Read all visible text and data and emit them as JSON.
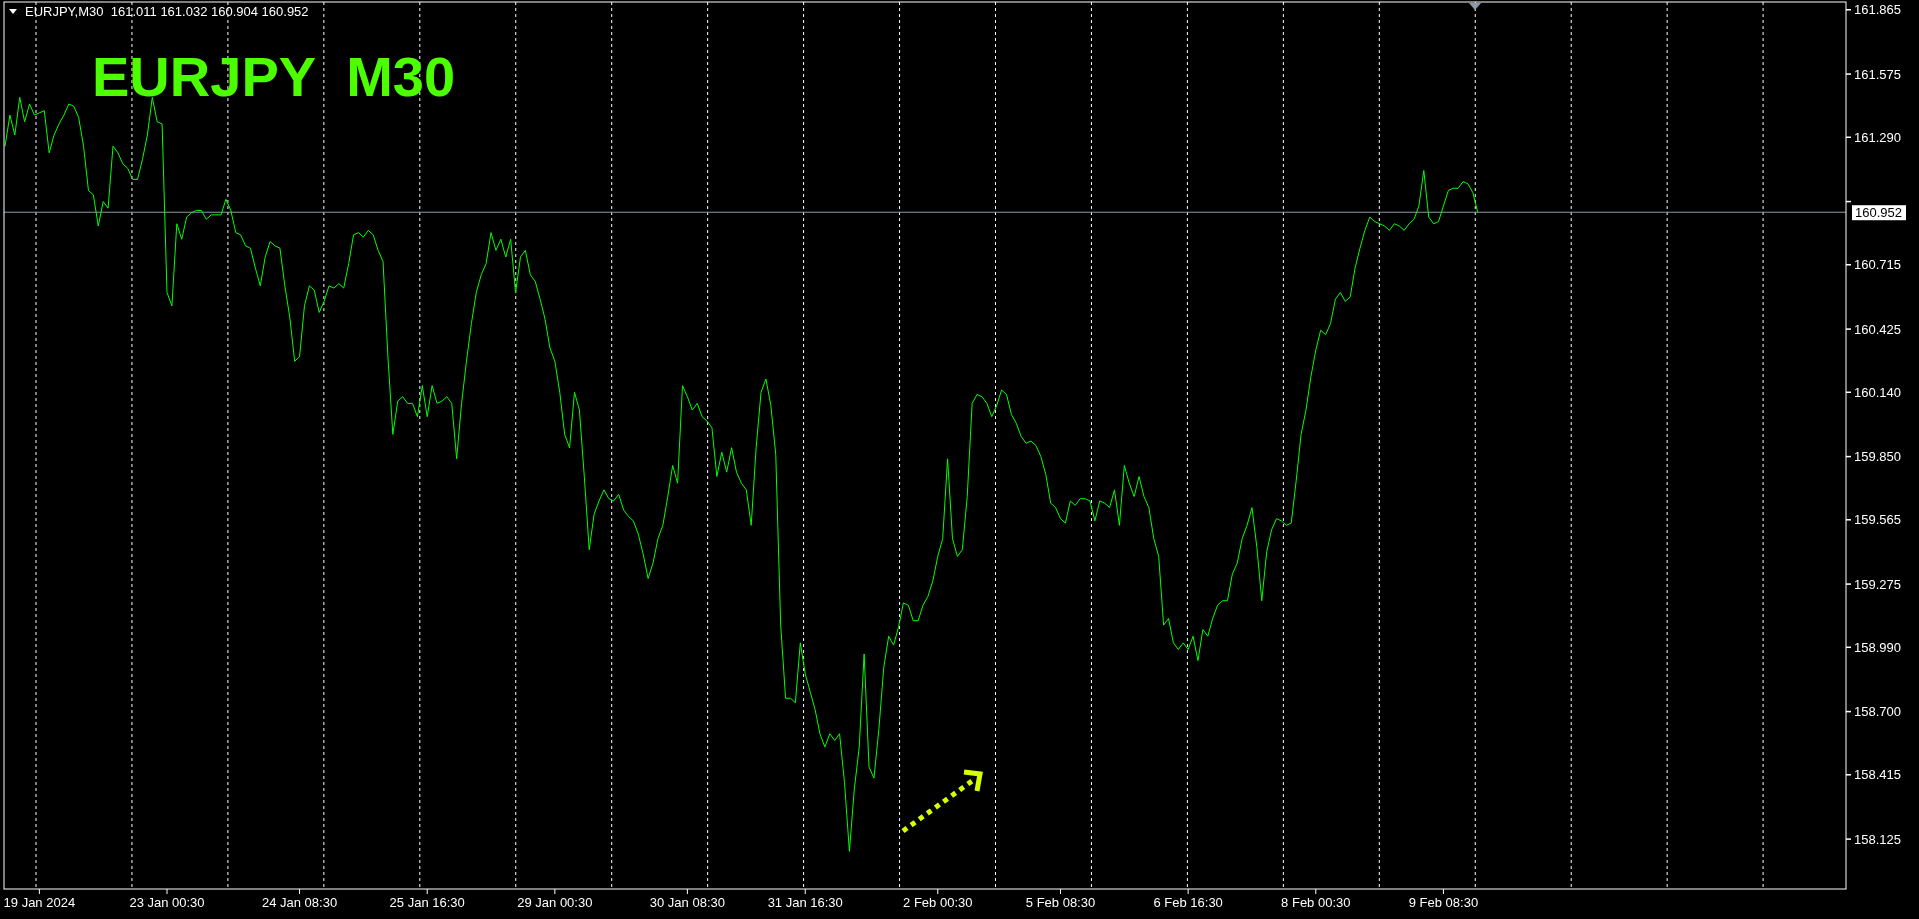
{
  "chart_data": {
    "type": "line",
    "title": "EURJPY  M30",
    "subtitle": "EURJPY,M30  161.011 161.032 160.904 160.952",
    "categories": [
      null,
      null,
      null,
      null,
      null,
      null,
      null,
      "19 Jan 2024",
      null,
      null,
      null,
      null,
      null,
      null,
      null,
      null,
      null,
      null,
      null,
      null,
      null,
      null,
      null,
      null,
      null,
      null,
      null,
      null,
      null,
      null,
      null,
      null,
      null,
      "23 Jan 00:30",
      null,
      null,
      null,
      null,
      null,
      null,
      null,
      null,
      null,
      null,
      null,
      null,
      null,
      null,
      null,
      null,
      null,
      null,
      null,
      null,
      null,
      null,
      null,
      null,
      null,
      null,
      "24 Jan 08:30",
      null,
      null,
      null,
      null,
      null,
      null,
      null,
      null,
      null,
      null,
      null,
      null,
      null,
      null,
      null,
      null,
      null,
      null,
      null,
      null,
      null,
      null,
      null,
      null,
      null,
      "25 Jan 16:30",
      null,
      null,
      null,
      null,
      null,
      null,
      null,
      null,
      null,
      null,
      null,
      null,
      null,
      null,
      null,
      null,
      null,
      null,
      null,
      null,
      null,
      null,
      null,
      null,
      null,
      "29 Jan 00:30",
      null,
      null,
      null,
      null,
      null,
      null,
      null,
      null,
      null,
      null,
      null,
      null,
      null,
      null,
      null,
      null,
      null,
      null,
      null,
      null,
      null,
      null,
      null,
      null,
      null,
      null,
      "30 Jan 08:30",
      null,
      null,
      null,
      null,
      null,
      null,
      null,
      null,
      null,
      null,
      null,
      null,
      null,
      null,
      null,
      null,
      null,
      null,
      null,
      null,
      null,
      null,
      null,
      "31 Jan 16:30",
      null,
      null,
      null,
      null,
      null,
      null,
      null,
      null,
      null,
      null,
      null,
      null,
      null,
      null,
      null,
      null,
      null,
      null,
      null,
      null,
      null,
      null,
      null,
      null,
      null,
      null,
      "2 Feb 00:30",
      null,
      null,
      null,
      null,
      null,
      null,
      null,
      null,
      null,
      null,
      null,
      null,
      null,
      null,
      null,
      null,
      null,
      null,
      null,
      null,
      null,
      null,
      null,
      null,
      "5 Feb 08:30",
      null,
      null,
      null,
      null,
      null,
      null,
      null,
      null,
      null,
      null,
      null,
      null,
      null,
      null,
      null,
      null,
      null,
      null,
      null,
      null,
      null,
      null,
      null,
      null,
      null,
      "6 Feb 16:30",
      null,
      null,
      null,
      null,
      null,
      null,
      null,
      null,
      null,
      null,
      null,
      null,
      null,
      null,
      null,
      null,
      null,
      null,
      null,
      null,
      null,
      null,
      null,
      null,
      null,
      "8 Feb 00:30",
      null,
      null,
      null,
      null,
      null,
      null,
      null,
      null,
      null,
      null,
      null,
      null,
      null,
      null,
      null,
      null,
      null,
      null,
      null,
      null,
      null,
      null,
      null,
      null,
      null,
      "9 Feb 08:30",
      null,
      null,
      null,
      null,
      null,
      null,
      null,
      null,
      null,
      null,
      null,
      null,
      null,
      null,
      null,
      null,
      null,
      null,
      null,
      null,
      null,
      null,
      null,
      null,
      null,
      null,
      null,
      null,
      null,
      null,
      null,
      null,
      null,
      null,
      null,
      null,
      null,
      null,
      null,
      null,
      null,
      null,
      null,
      null,
      null,
      null,
      null,
      null,
      null,
      null,
      null,
      null,
      null,
      null,
      null,
      null,
      null,
      null,
      null,
      null,
      null,
      null,
      null,
      null,
      null,
      null,
      null,
      null,
      null,
      null,
      null,
      null,
      null,
      null,
      null,
      null,
      null,
      null,
      null,
      null,
      null,
      null
    ],
    "ylim": [
      157.9,
      161.9
    ],
    "yticks": [
      {
        "value": 161.865,
        "label": "161.865"
      },
      {
        "value": 161.575,
        "label": "161.575"
      },
      {
        "value": 161.29,
        "label": "161.290"
      },
      {
        "value": 161.0,
        "label": null
      },
      {
        "value": 160.715,
        "label": "160.715"
      },
      {
        "value": 160.425,
        "label": "160.425"
      },
      {
        "value": 160.14,
        "label": "160.140"
      },
      {
        "value": 159.85,
        "label": "159.850"
      },
      {
        "value": 159.565,
        "label": "159.565"
      },
      {
        "value": 159.275,
        "label": "159.275"
      },
      {
        "value": 158.99,
        "label": "158.990"
      },
      {
        "value": 158.7,
        "label": "158.700"
      },
      {
        "value": 158.415,
        "label": "158.415"
      },
      {
        "value": 158.125,
        "label": "158.125"
      }
    ],
    "grid": "x",
    "marker": "none",
    "line_style": "solid",
    "ref_lines": [
      {
        "axis": "y",
        "value": 160.952,
        "label": "160.952",
        "color": "#8c9aa8",
        "line_style": "solid"
      }
    ],
    "series": [
      {
        "color": "#00ff00",
        "values": [
          161.25,
          161.39,
          161.3,
          161.47,
          161.36,
          161.44,
          161.39,
          161.4,
          161.41,
          161.22,
          161.3,
          161.35,
          161.39,
          161.44,
          161.43,
          161.38,
          161.25,
          161.05,
          161.03,
          160.89,
          161.0,
          160.97,
          161.25,
          161.22,
          161.17,
          161.15,
          161.1,
          161.1,
          161.19,
          161.3,
          161.47,
          161.36,
          161.35,
          160.59,
          160.53,
          160.9,
          160.83,
          160.93,
          160.95,
          160.96,
          160.96,
          160.92,
          160.94,
          160.94,
          160.94,
          161.01,
          160.96,
          160.86,
          160.85,
          160.8,
          160.79,
          160.7,
          160.62,
          160.75,
          160.82,
          160.8,
          160.79,
          160.62,
          160.48,
          160.28,
          160.3,
          160.53,
          160.62,
          160.6,
          160.5,
          160.55,
          160.62,
          160.61,
          160.63,
          160.61,
          160.72,
          160.85,
          160.86,
          160.84,
          160.87,
          160.85,
          160.78,
          160.73,
          160.3,
          159.95,
          160.1,
          160.12,
          160.09,
          160.09,
          160.03,
          160.17,
          160.03,
          160.17,
          160.09,
          160.1,
          160.12,
          160.09,
          159.84,
          160.09,
          160.28,
          160.45,
          160.59,
          160.67,
          160.72,
          160.86,
          160.78,
          160.83,
          160.75,
          160.83,
          160.59,
          160.75,
          160.78,
          160.67,
          160.64,
          160.56,
          160.47,
          160.34,
          160.28,
          160.14,
          159.95,
          159.89,
          160.14,
          160.06,
          159.76,
          159.43,
          159.59,
          159.65,
          159.7,
          159.66,
          159.65,
          159.68,
          159.61,
          159.58,
          159.56,
          159.5,
          159.41,
          159.3,
          159.37,
          159.48,
          159.54,
          159.67,
          159.81,
          159.73,
          160.17,
          160.12,
          160.06,
          160.09,
          160.03,
          160.01,
          159.98,
          159.76,
          159.87,
          159.78,
          159.89,
          159.78,
          159.73,
          159.7,
          159.54,
          159.89,
          160.14,
          160.2,
          160.08,
          159.86,
          159.09,
          158.76,
          158.76,
          158.74,
          159.01,
          158.87,
          158.79,
          158.71,
          158.6,
          158.54,
          158.6,
          158.57,
          158.6,
          158.38,
          158.07,
          158.35,
          158.54,
          158.96,
          158.45,
          158.4,
          158.62,
          158.9,
          159.04,
          159.0,
          159.08,
          159.19,
          159.18,
          159.11,
          159.11,
          159.18,
          159.22,
          159.29,
          159.4,
          159.48,
          159.84,
          159.48,
          159.4,
          159.43,
          159.67,
          160.09,
          160.13,
          160.12,
          160.09,
          160.03,
          160.08,
          160.15,
          160.13,
          160.04,
          160.0,
          159.94,
          159.91,
          159.92,
          159.9,
          159.85,
          159.77,
          159.64,
          159.62,
          159.57,
          159.55,
          159.65,
          159.63,
          159.66,
          159.66,
          159.65,
          159.56,
          159.65,
          159.64,
          159.62,
          159.7,
          159.54,
          159.81,
          159.73,
          159.67,
          159.76,
          159.67,
          159.62,
          159.48,
          159.4,
          159.09,
          159.12,
          159.01,
          158.98,
          159.01,
          158.98,
          159.04,
          158.93,
          159.07,
          159.04,
          159.12,
          159.18,
          159.2,
          159.2,
          159.32,
          159.37,
          159.48,
          159.54,
          159.62,
          159.44,
          159.2,
          159.42,
          159.52,
          159.57,
          159.56,
          159.54,
          159.55,
          159.74,
          159.95,
          160.06,
          160.21,
          160.33,
          160.42,
          160.4,
          160.45,
          160.56,
          160.59,
          160.55,
          160.57,
          160.7,
          160.79,
          160.87,
          160.93,
          160.91,
          160.9,
          160.89,
          160.87,
          160.9,
          160.89,
          160.87,
          160.9,
          160.92,
          160.98,
          161.14,
          160.93,
          160.9,
          160.91,
          160.98,
          161.05,
          161.06,
          161.06,
          161.09,
          161.08,
          161.04,
          160.95,
          null,
          null,
          null,
          null,
          null,
          null,
          null,
          null,
          null,
          null,
          null,
          null,
          null,
          null,
          null,
          null,
          null,
          null,
          null,
          null,
          null,
          null,
          null,
          null,
          null,
          null,
          null,
          null,
          null,
          null,
          null,
          null,
          null,
          null,
          null,
          null,
          null,
          null,
          null,
          null,
          null,
          null,
          null,
          null,
          null,
          null,
          null,
          null,
          null,
          null,
          null,
          null,
          null,
          null,
          null,
          null,
          null,
          null,
          null,
          null,
          null,
          null,
          null,
          null,
          null,
          null,
          null,
          null,
          null,
          null,
          null,
          null,
          null,
          null,
          null
        ]
      }
    ]
  }
}
